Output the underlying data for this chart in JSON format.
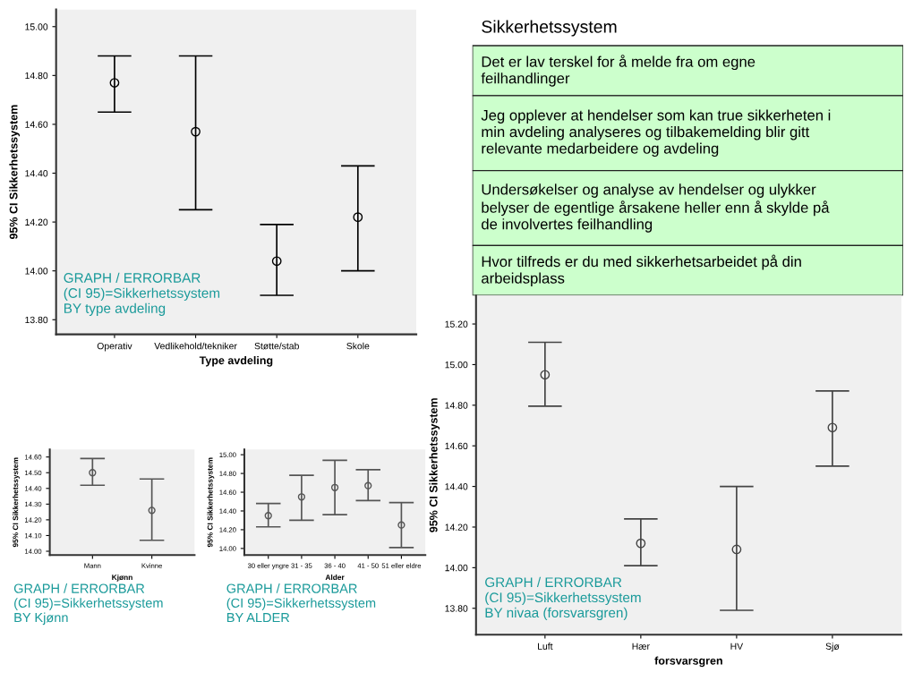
{
  "chart_data": [
    {
      "type": "scatter",
      "xlabel": "Type avdeling",
      "ylabel": "95% CI Sikkerhetssystem",
      "categories": [
        "Operativ",
        "Vedlikehold/tekniker",
        "Støtte/stab",
        "Skole"
      ],
      "values": [
        14.77,
        14.57,
        14.04,
        14.22
      ],
      "errors": [
        [
          14.65,
          14.88
        ],
        [
          14.25,
          14.88
        ],
        [
          13.9,
          14.19
        ],
        [
          14.0,
          14.43
        ]
      ],
      "color": "#000000",
      "marker": "circle",
      "ylim": [
        13.74,
        15.07
      ],
      "yticks": [
        {
          "value": 13.8,
          "label": "13.80"
        },
        {
          "value": 14.0,
          "label": "14.00"
        },
        {
          "value": 14.2,
          "label": "14.20"
        },
        {
          "value": 14.4,
          "label": "14.40"
        },
        {
          "value": 14.6,
          "label": "14.60"
        },
        {
          "value": 14.8,
          "label": "14.80"
        },
        {
          "value": 15.0,
          "label": "15.00"
        }
      ],
      "annotations": [
        "GRAPH / ERRORBAR\n(CI 95)=Sikkerhetssystem\nBY type avdeling"
      ]
    },
    {
      "type": "other",
      "title": "Sikkerhetssystem",
      "annotations": [
        "Det er lav terskel for å melde fra om egne\nfeilhandlinger",
        "Jeg opplever at hendelser som kan true sikkerheten i\nmin avdeling analyseres og tilbakemelding blir gitt\nrelevante medarbeidere og avdeling",
        "Undersøkelser og analyse av hendelser og ulykker\nbelyser de egentlige årsakene heller enn å skylde på\nde involvertes feilhandling",
        "Hvor tilfreds er du med sikkerhetsarbeidet på din\narbeidsplass"
      ],
      "colors": [
        "#ccffcc",
        "#ccffcc",
        "#ccffcc",
        "#ccffcc"
      ]
    },
    {
      "type": "scatter",
      "xlabel": "Kjønn",
      "ylabel": "95% CI Sikkerhetssystem",
      "categories": [
        "Mann",
        "Kvinne"
      ],
      "values": [
        14.5,
        14.26
      ],
      "errors": [
        [
          14.42,
          14.59
        ],
        [
          14.07,
          14.46
        ]
      ],
      "color": "#555555",
      "marker": "circle",
      "ylim": [
        13.976,
        14.648
      ],
      "yticks": [
        {
          "value": 14.0,
          "label": "14.00"
        },
        {
          "value": 14.1,
          "label": "14.10"
        },
        {
          "value": 14.2,
          "label": "14.20"
        },
        {
          "value": 14.3,
          "label": "14.30"
        },
        {
          "value": 14.4,
          "label": "14.40"
        },
        {
          "value": 14.5,
          "label": "14.50"
        },
        {
          "value": 14.6,
          "label": "14.60"
        }
      ],
      "annotations": [
        "GRAPH / ERRORBAR\n(CI 95)=Sikkerhetssystem\nBY Kjønn"
      ]
    },
    {
      "type": "scatter",
      "xlabel": "Alder",
      "ylabel": "95% CI Sikkerhetssystem",
      "categories": [
        "30 eller yngre",
        "31 - 35",
        "36 - 40",
        "41 - 50",
        "51 eller eldre"
      ],
      "values": [
        14.35,
        14.55,
        14.65,
        14.67,
        14.25
      ],
      "errors": [
        [
          14.23,
          14.48
        ],
        [
          14.3,
          14.78
        ],
        [
          14.36,
          14.94
        ],
        [
          14.51,
          14.84
        ],
        [
          14.01,
          14.49
        ]
      ],
      "color": "#555555",
      "marker": "circle",
      "ylim": [
        13.93,
        15.056
      ],
      "yticks": [
        {
          "value": 14.0,
          "label": "14.00"
        },
        {
          "value": 14.2,
          "label": "14.20"
        },
        {
          "value": 14.4,
          "label": "14.40"
        },
        {
          "value": 14.6,
          "label": "14.60"
        },
        {
          "value": 14.8,
          "label": "14.80"
        },
        {
          "value": 15.0,
          "label": "15.00"
        }
      ],
      "annotations": [
        "GRAPH / ERRORBAR\n(CI 95)=Sikkerhetssystem\nBY ALDER"
      ]
    },
    {
      "type": "scatter",
      "xlabel": "forsvarsgren",
      "ylabel": "95% CI Sikkerhetssystem",
      "categories": [
        "Luft",
        "Hær",
        "HV",
        "Sjø"
      ],
      "values": [
        14.95,
        14.12,
        14.09,
        14.69
      ],
      "errors": [
        [
          14.795,
          15.11
        ],
        [
          14.01,
          14.24
        ],
        [
          13.79,
          14.4
        ],
        [
          14.5,
          14.87
        ]
      ],
      "color": "#444444",
      "marker": "circle",
      "ylim": [
        13.67,
        15.34
      ],
      "yticks": [
        {
          "value": 13.8,
          "label": "13.80"
        },
        {
          "value": 14.0,
          "label": "14.00"
        },
        {
          "value": 14.2,
          "label": "14.20"
        },
        {
          "value": 14.4,
          "label": "14.40"
        },
        {
          "value": 14.6,
          "label": "14.60"
        },
        {
          "value": 14.8,
          "label": "14.80"
        },
        {
          "value": 15.0,
          "label": "15.00"
        },
        {
          "value": 15.2,
          "label": "15.20"
        }
      ],
      "annotations": [
        "GRAPH / ERRORBAR\n(CI 95)=Sikkerhetssystem\nBY nivaa (forsvarsgren)"
      ]
    }
  ]
}
